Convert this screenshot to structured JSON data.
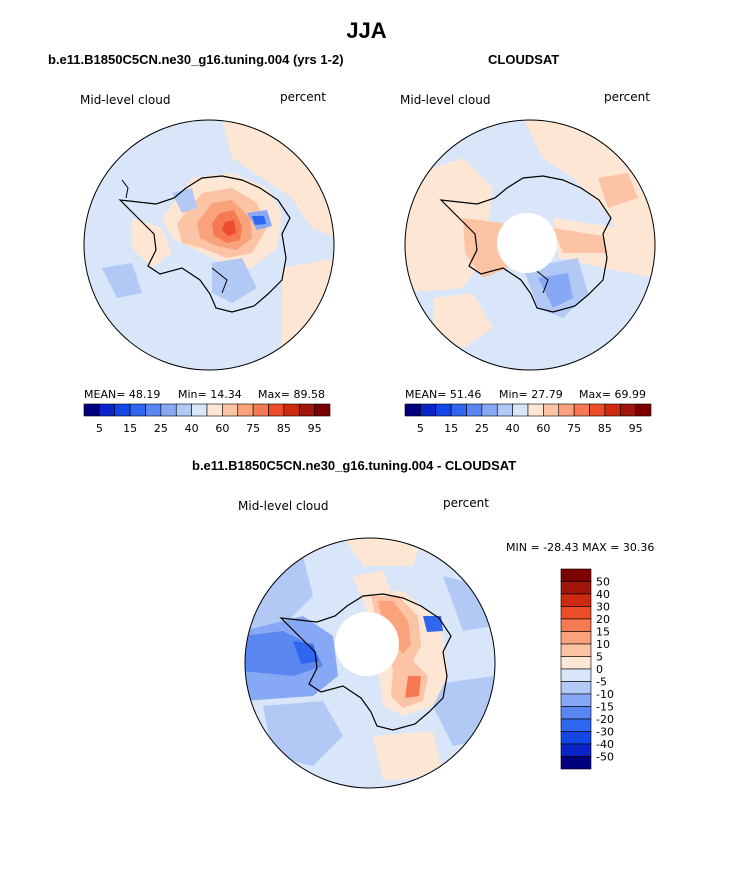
{
  "page": {
    "title": "JJA"
  },
  "panels": {
    "model": {
      "title": "b.e11.B1850C5CN.ne30_g16.tuning.004 (yrs 1-2)",
      "field_label": "Mid-level cloud",
      "units_label": "percent",
      "mean_text": "MEAN=  48.19",
      "min_text": "Min=  14.34",
      "max_text": "Max=  89.58"
    },
    "obs": {
      "title": "CLOUDSAT",
      "field_label": "Mid-level cloud",
      "units_label": "percent",
      "mean_text": "MEAN=  51.46",
      "min_text": "Min=  27.79",
      "max_text": "Max=  69.99"
    },
    "diff": {
      "title": "b.e11.B1850C5CN.ne30_g16.tuning.004 - CLOUDSAT",
      "field_label": "Mid-level cloud",
      "units_label": "percent",
      "minmax_text": "MIN = -28.43 MAX =  30.36"
    }
  },
  "colorbars": {
    "horizontal": {
      "colors": [
        "#00007f",
        "#0b24c8",
        "#1446e6",
        "#2f66f0",
        "#5a86f2",
        "#87a8f5",
        "#b2c8f5",
        "#d9e6fa",
        "#fde6d4",
        "#fcc4a4",
        "#f9a27c",
        "#f57a53",
        "#ec4d2b",
        "#cc2b12",
        "#a0160a",
        "#7d0000"
      ],
      "labels": [
        "5",
        "15",
        "25",
        "40",
        "60",
        "75",
        "85",
        "95"
      ]
    },
    "vertical": {
      "colors": [
        "#7d0000",
        "#a0160a",
        "#cc2b12",
        "#ec4d2b",
        "#f57a53",
        "#f9a27c",
        "#fcc4a4",
        "#fde6d4",
        "#d9e6fa",
        "#b2c8f5",
        "#87a8f5",
        "#5a86f2",
        "#2f66f0",
        "#1446e6",
        "#0b24c8",
        "#00007f"
      ],
      "labels": [
        "50",
        "40",
        "30",
        "20",
        "15",
        "10",
        "5",
        "0",
        "-5",
        "-10",
        "-15",
        "-20",
        "-30",
        "-40",
        "-50"
      ]
    }
  }
}
